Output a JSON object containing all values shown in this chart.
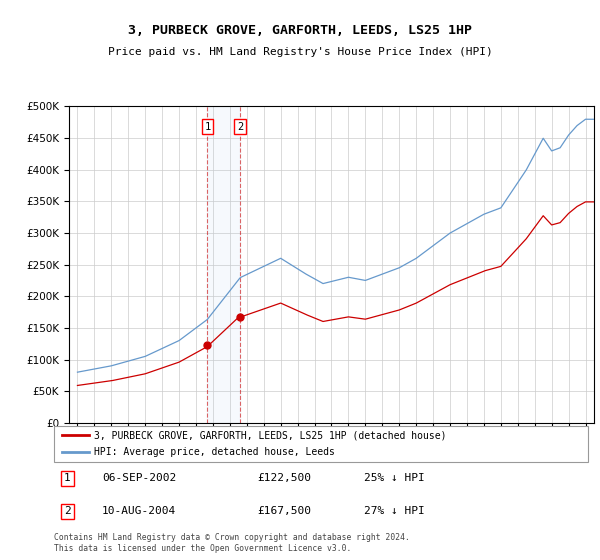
{
  "title": "3, PURBECK GROVE, GARFORTH, LEEDS, LS25 1HP",
  "subtitle": "Price paid vs. HM Land Registry's House Price Index (HPI)",
  "legend_line1": "3, PURBECK GROVE, GARFORTH, LEEDS, LS25 1HP (detached house)",
  "legend_line2": "HPI: Average price, detached house, Leeds",
  "sale1_date": "06-SEP-2002",
  "sale1_price_str": "£122,500",
  "sale1_hpi_str": "25% ↓ HPI",
  "sale1_year": 2002.67,
  "sale1_price": 122500,
  "sale2_date": "10-AUG-2004",
  "sale2_price_str": "£167,500",
  "sale2_hpi_str": "27% ↓ HPI",
  "sale2_year": 2004.61,
  "sale2_price": 167500,
  "red_color": "#cc0000",
  "blue_color": "#6699cc",
  "background_color": "#ffffff",
  "grid_color": "#cccccc",
  "footer": "Contains HM Land Registry data © Crown copyright and database right 2024.\nThis data is licensed under the Open Government Licence v3.0.",
  "ylim": [
    0,
    500000
  ],
  "xlim": [
    1994.5,
    2025.5
  ]
}
